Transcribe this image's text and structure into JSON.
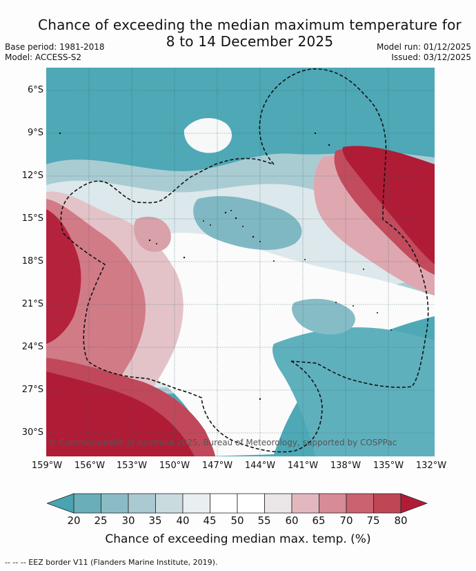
{
  "header": {
    "title_line1": "Chance of exceeding the median maximum temperature for",
    "title_line2": "8 to 14 December 2025",
    "base_period": "Base period: 1981-2018",
    "model": "Model: ACCESS-S2",
    "model_run": "Model run: 01/12/2025",
    "issued": "Issued: 03/12/2025"
  },
  "map": {
    "lat_labels": [
      "6°S",
      "9°S",
      "12°S",
      "15°S",
      "18°S",
      "21°S",
      "24°S",
      "27°S",
      "30°S"
    ],
    "lon_labels": [
      "159°W",
      "156°W",
      "153°W",
      "150°W",
      "147°W",
      "144°W",
      "141°W",
      "138°W",
      "135°W",
      "132°W"
    ],
    "copyright": "© Commonwealth of Australia 2025, Bureau of Meteorology, supported by COSPPac"
  },
  "colorbar": {
    "ticks": [
      "20",
      "25",
      "30",
      "35",
      "40",
      "45",
      "50",
      "55",
      "60",
      "65",
      "70",
      "75",
      "80"
    ],
    "colors": [
      "#4aa3b0",
      "#6aaeba",
      "#8bbcc6",
      "#aac9d0",
      "#cadbe0",
      "#e9eef0",
      "#ffffff",
      "#ffffff",
      "#ebe6e7",
      "#e2b8be",
      "#d68b96",
      "#ca626f",
      "#bf4655",
      "#b01c36"
    ],
    "label": "Chance of exceeding median max. temp. (%)"
  },
  "footer": {
    "eez_note": "--  --  -- EEZ border V11 (Flanders Marine Institute, 2019)."
  }
}
